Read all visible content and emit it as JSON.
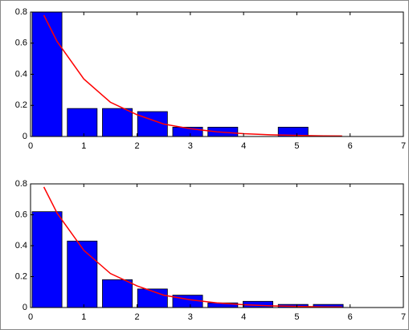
{
  "chart_data": [
    {
      "type": "bar",
      "x": [
        0.31,
        0.97,
        1.63,
        2.29,
        2.95,
        3.61,
        4.27,
        4.93,
        5.59
      ],
      "values": [
        0.8,
        0.18,
        0.18,
        0.16,
        0.06,
        0.06,
        0,
        0.06,
        0
      ],
      "color": "#0000ff",
      "line": {
        "x": [
          0.25,
          0.5,
          1,
          1.5,
          2,
          2.5,
          3,
          3.5,
          4,
          4.5,
          5,
          5.5,
          5.85
        ],
        "values": [
          0.78,
          0.61,
          0.37,
          0.22,
          0.14,
          0.08,
          0.05,
          0.03,
          0.018,
          0.011,
          0.007,
          0.004,
          0.003
        ],
        "color": "#ff0000"
      },
      "xlim": [
        0,
        7
      ],
      "xticks": [
        0,
        1,
        2,
        3,
        4,
        5,
        6,
        7
      ],
      "ylim": [
        0,
        0.8
      ],
      "yticks": [
        0,
        0.2,
        0.4,
        0.6,
        0.8
      ]
    },
    {
      "type": "bar",
      "x": [
        0.31,
        0.97,
        1.63,
        2.29,
        2.95,
        3.61,
        4.27,
        4.93,
        5.59
      ],
      "values": [
        0.62,
        0.43,
        0.18,
        0.12,
        0.08,
        0.03,
        0.04,
        0.02,
        0.02
      ],
      "color": "#0000ff",
      "line": {
        "x": [
          0.25,
          0.5,
          1,
          1.5,
          2,
          2.5,
          3,
          3.5,
          4,
          4.5,
          5,
          5.5,
          5.85
        ],
        "values": [
          0.78,
          0.61,
          0.37,
          0.22,
          0.14,
          0.08,
          0.05,
          0.03,
          0.018,
          0.011,
          0.007,
          0.004,
          0.003
        ],
        "color": "#ff0000"
      },
      "xlim": [
        0,
        7
      ],
      "xticks": [
        0,
        1,
        2,
        3,
        4,
        5,
        6,
        7
      ],
      "ylim": [
        0,
        0.8
      ],
      "yticks": [
        0,
        0.2,
        0.4,
        0.6,
        0.8
      ]
    }
  ]
}
